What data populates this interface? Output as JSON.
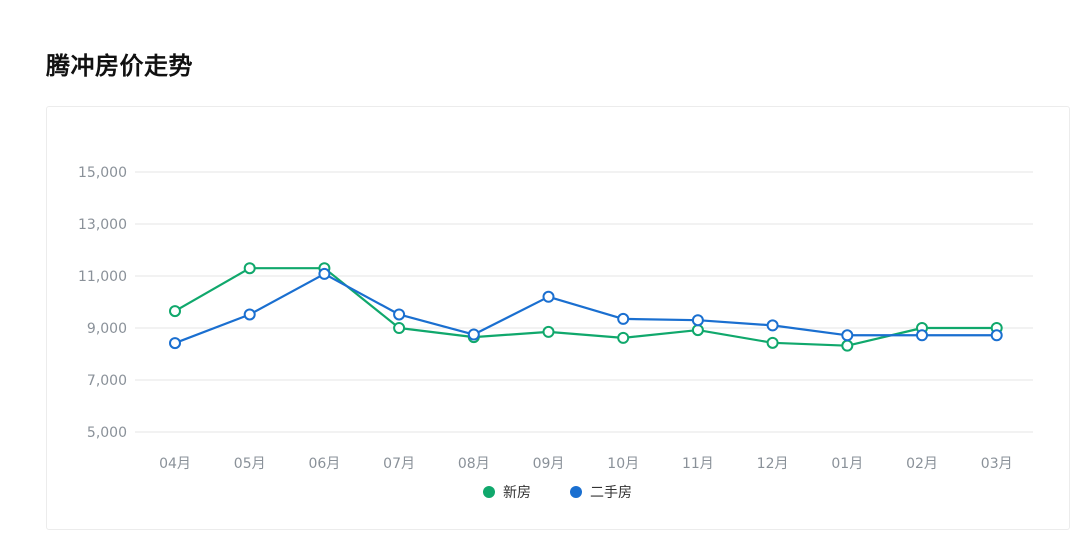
{
  "page": {
    "title": "腾冲房价走势"
  },
  "chart_data": {
    "type": "line",
    "categories": [
      "04月",
      "05月",
      "06月",
      "07月",
      "08月",
      "09月",
      "10月",
      "11月",
      "12月",
      "01月",
      "02月",
      "03月"
    ],
    "series": [
      {
        "name": "新房",
        "color": "#10a86c",
        "values": [
          9650,
          11300,
          11300,
          9000,
          8650,
          8850,
          8620,
          8920,
          8430,
          8320,
          9000,
          9000
        ]
      },
      {
        "name": "二手房",
        "color": "#1a6fd0",
        "values": [
          8420,
          9520,
          11080,
          9520,
          8750,
          10200,
          9350,
          9300,
          9100,
          8720,
          8720,
          8720
        ]
      }
    ],
    "yticks": [
      "5,000",
      "7,000",
      "9,000",
      "11,000",
      "13,000",
      "15,000"
    ],
    "ytick_values": [
      5000,
      7000,
      9000,
      11000,
      13000,
      15000
    ],
    "ylim": [
      5000,
      15000
    ],
    "xlabel": "",
    "ylabel": "",
    "grid": true,
    "legend_position": "bottom-center"
  }
}
